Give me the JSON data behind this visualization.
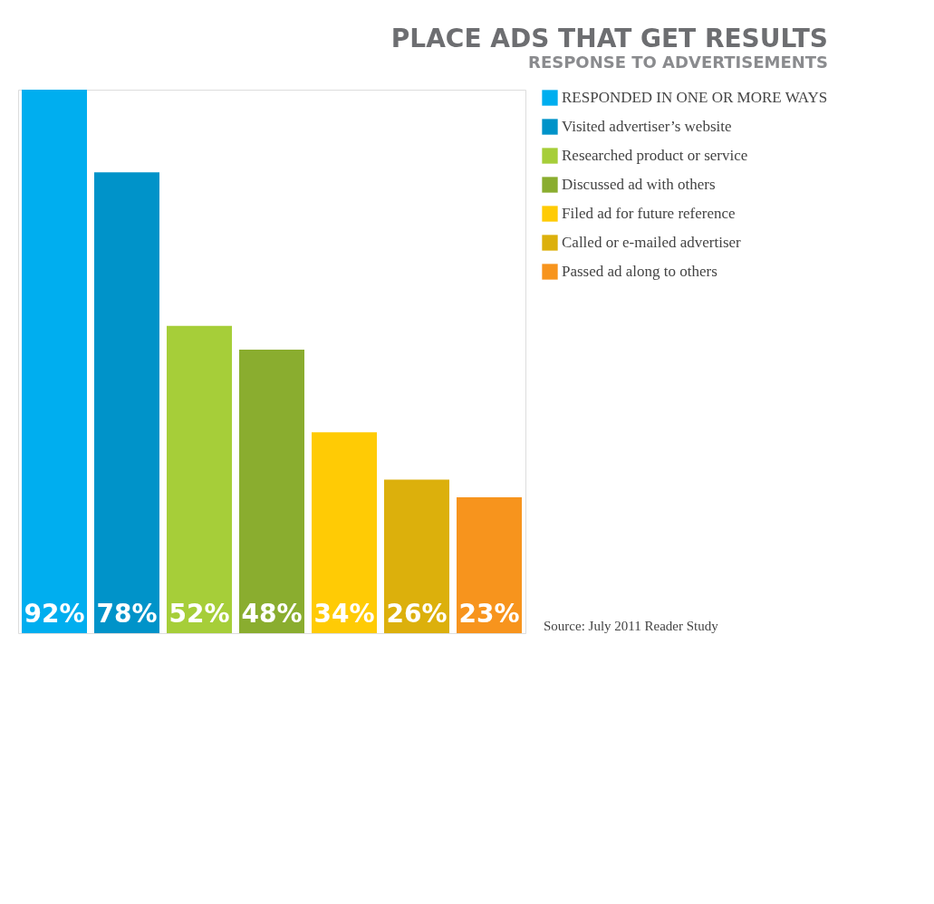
{
  "chart_data": {
    "type": "bar",
    "title": "PLACE ADS THAT GET RESULTS",
    "subtitle": "RESPONSE TO ADVERTISEMENTS",
    "categories": [
      null,
      null,
      null,
      null,
      null,
      null,
      null
    ],
    "series": [
      {
        "name": "RESPONDED IN ONE OR MORE WAYS",
        "color": "#00aeef",
        "values": [
          92,
          null,
          null,
          null,
          null,
          null,
          null
        ],
        "value_labels": [
          "92%",
          null,
          null,
          null,
          null,
          null,
          null
        ]
      },
      {
        "name": "Visited advertiser’s website",
        "color": "#0093c9",
        "values": [
          null,
          78,
          null,
          null,
          null,
          null,
          null
        ],
        "value_labels": [
          null,
          "78%",
          null,
          null,
          null,
          null,
          null
        ]
      },
      {
        "name": "Researched product or service",
        "color": "#a6ce39",
        "values": [
          null,
          null,
          52,
          null,
          null,
          null,
          null
        ],
        "value_labels": [
          null,
          null,
          "52%",
          null,
          null,
          null,
          null
        ]
      },
      {
        "name": "Discussed ad with others",
        "color": "#8aad2f",
        "values": [
          null,
          null,
          null,
          48,
          null,
          null,
          null
        ],
        "value_labels": [
          null,
          null,
          null,
          "48%",
          null,
          null,
          null
        ]
      },
      {
        "name": "Filed ad for future reference",
        "color": "#ffcb05",
        "values": [
          null,
          null,
          null,
          null,
          34,
          null,
          null
        ],
        "value_labels": [
          null,
          null,
          null,
          null,
          "34%",
          null,
          null
        ]
      },
      {
        "name": "Called or e-mailed advertiser",
        "color": "#dcb00c",
        "values": [
          null,
          null,
          null,
          null,
          null,
          26,
          null
        ],
        "value_labels": [
          null,
          null,
          null,
          null,
          null,
          "26%",
          null
        ]
      },
      {
        "name": "Passed ad along to others",
        "color": "#f7941d",
        "values": [
          null,
          null,
          null,
          null,
          null,
          null,
          23
        ],
        "value_labels": [
          null,
          null,
          null,
          null,
          null,
          null,
          "23%"
        ]
      }
    ],
    "stacked": true,
    "tick_labels": false,
    "grid": false,
    "legend": "right",
    "annotations": [
      "Source: July 2011 Reader Study"
    ]
  }
}
